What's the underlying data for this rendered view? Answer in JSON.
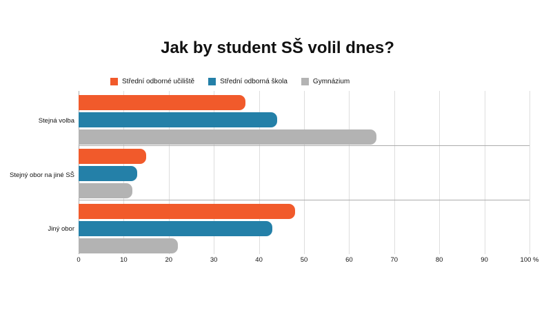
{
  "chart_data": {
    "type": "bar",
    "orientation": "horizontal",
    "title": "Jak by student SŠ volil dnes?",
    "categories": [
      "Stejná volba",
      "Stejný obor na jiné SŠ",
      "Jiný obor"
    ],
    "series": [
      {
        "name": "Střední odborné učiliště",
        "color": "#f15a2b",
        "values": [
          37,
          15,
          48
        ]
      },
      {
        "name": "Střední odborná škola",
        "color": "#2480a8",
        "values": [
          44,
          13,
          43
        ]
      },
      {
        "name": "Gymnázium",
        "color": "#b3b3b3",
        "values": [
          66,
          12,
          22
        ]
      }
    ],
    "xlabel": "",
    "ylabel": "",
    "xlim": [
      0,
      100
    ],
    "x_ticks": [
      "0",
      "10",
      "20",
      "30",
      "40",
      "50",
      "60",
      "70",
      "80",
      "90",
      "100 %"
    ],
    "grid": true,
    "legend_position": "top"
  }
}
